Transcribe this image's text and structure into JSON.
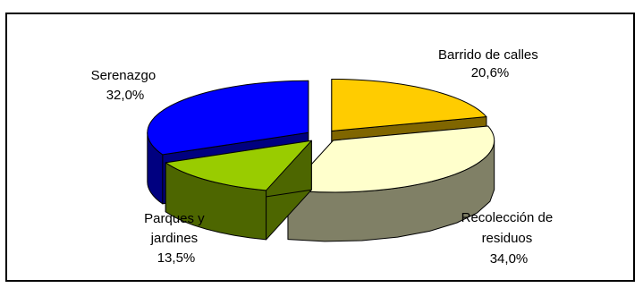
{
  "chart_data": {
    "type": "pie",
    "title": "",
    "slices": [
      {
        "label_lines": [
          "Barrido de calles"
        ],
        "value_text": "20,6%",
        "value": 20.6,
        "top_color": "#FFCC00",
        "side_color": "#806600",
        "explode": true
      },
      {
        "label_lines": [
          "Recolección de",
          "residuos"
        ],
        "value_text": "34,0%",
        "value": 34.0,
        "top_color": "#FFFFCC",
        "side_color": "#808066",
        "explode": true
      },
      {
        "label_lines": [
          "Parques y",
          "jardines"
        ],
        "value_text": "13,5%",
        "value": 13.5,
        "top_color": "#99CC00",
        "side_color": "#4D6600",
        "explode": true
      },
      {
        "label_lines": [
          "Serenazgo"
        ],
        "value_text": "32,0%",
        "value": 32.0,
        "top_color": "#0000FF",
        "side_color": "#000080",
        "explode": true
      }
    ]
  }
}
